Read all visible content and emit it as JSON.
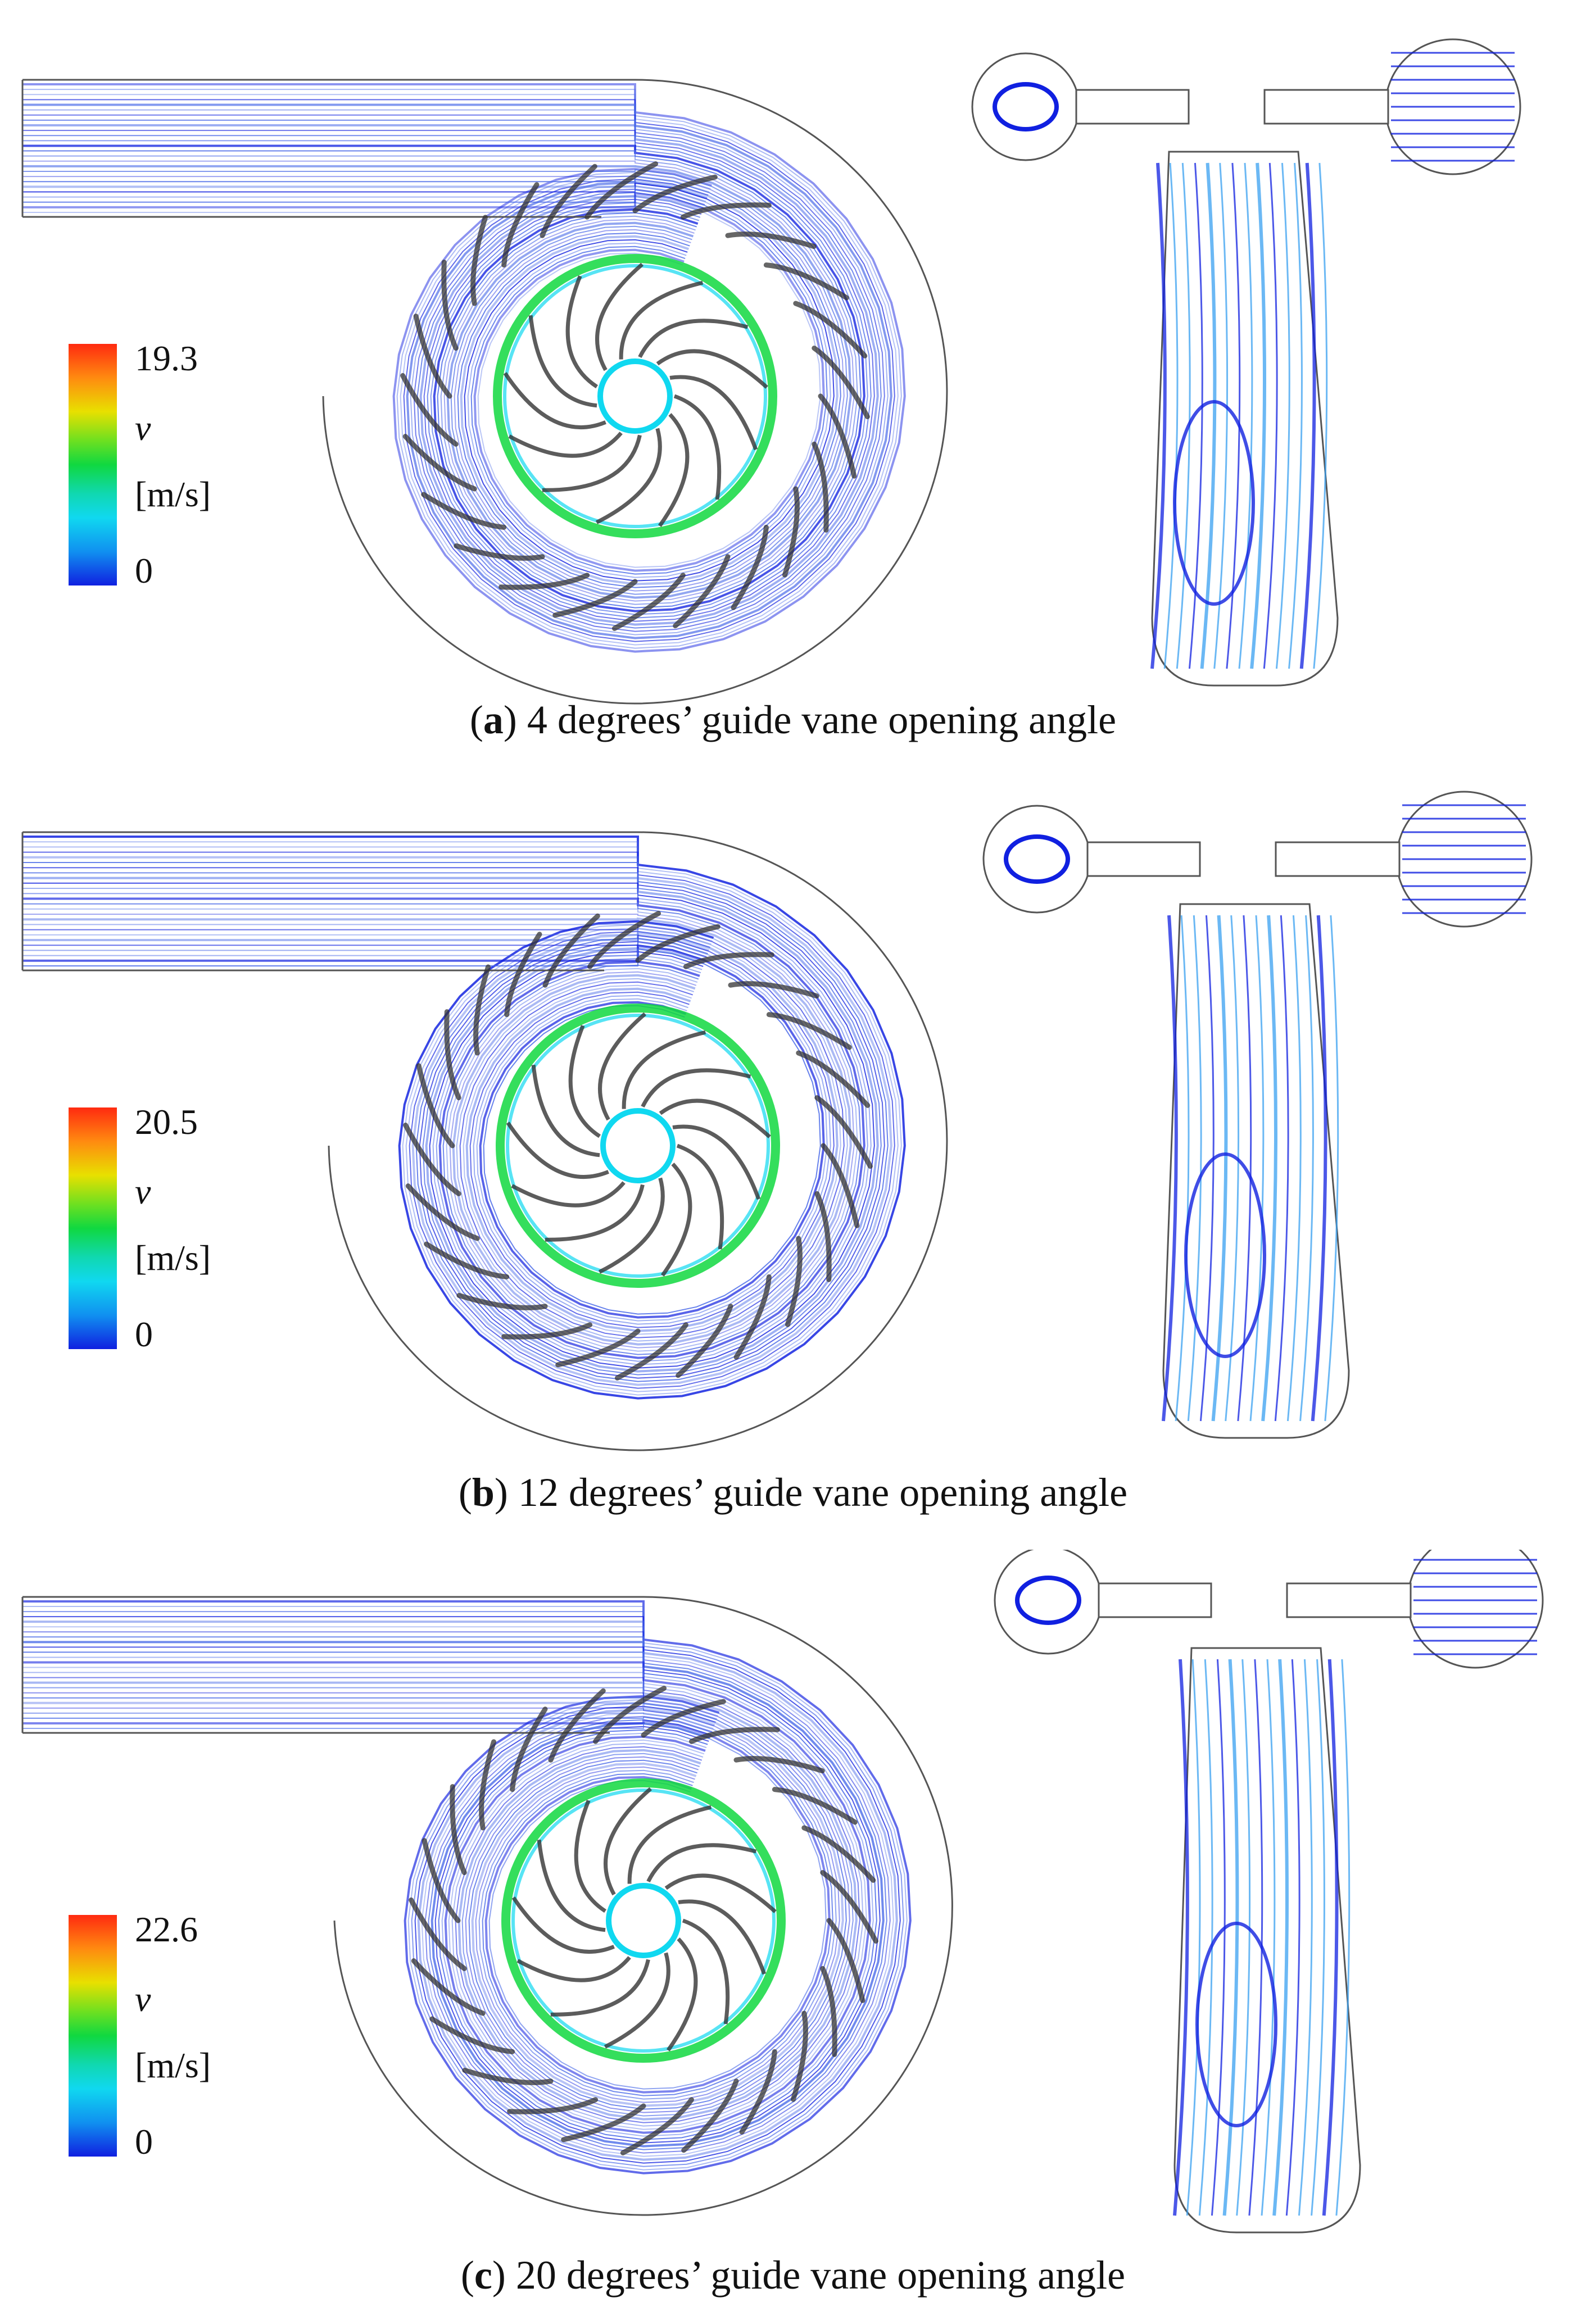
{
  "panels": [
    {
      "id": "a",
      "label": "a",
      "caption": " 4 degrees’ guide vane opening angle",
      "legend": {
        "max": "19.3",
        "symbol": "v",
        "unit": "[m/s]",
        "min": "0"
      }
    },
    {
      "id": "b",
      "label": "b",
      "caption": " 12 degrees’ guide vane opening angle",
      "legend": {
        "max": "20.5",
        "symbol": "v",
        "unit": "[m/s]",
        "min": "0"
      }
    },
    {
      "id": "c",
      "label": "c",
      "caption": " 20 degrees’ guide vane opening angle",
      "legend": {
        "max": "22.6",
        "symbol": "v",
        "unit": "[m/s]",
        "min": "0"
      }
    }
  ],
  "colors": {
    "low": "#1020e0",
    "mid": "#10d840",
    "high": "#ff2a10",
    "outline": "#555555"
  }
}
